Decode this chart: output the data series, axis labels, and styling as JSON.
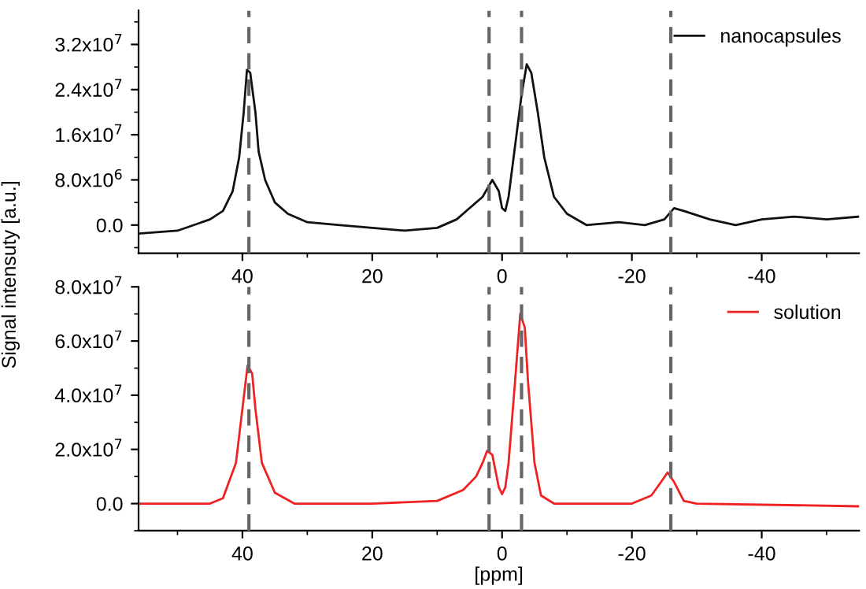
{
  "chart_data": [
    {
      "type": "line",
      "xlim": [
        56,
        -55
      ],
      "xticks": [
        40,
        20,
        0,
        -20,
        -40
      ],
      "ylim": [
        -5000000,
        38000000
      ],
      "yticks": [
        {
          "value": 0,
          "label": "0.0"
        },
        {
          "value": 8000000,
          "label": "8.0x10$^{6}$"
        },
        {
          "value": 16000000,
          "label": "1.6x10$^{7}$"
        },
        {
          "value": 24000000,
          "label": "2.4x10$^{7}$"
        },
        {
          "value": 32000000,
          "label": "3.2x10$^{7}$"
        }
      ],
      "legend": "top right",
      "grid": false,
      "series": [
        {
          "name": "nanocapsules",
          "color": "#111111",
          "x": [
            56,
            50,
            45,
            43,
            41.5,
            40.5,
            39.8,
            39.3,
            38.8,
            38,
            37.5,
            36.5,
            35,
            33,
            30,
            25,
            20,
            15,
            10,
            7,
            5,
            3,
            2,
            1.5,
            0.5,
            0,
            -0.5,
            -1,
            -2,
            -3,
            -3.8,
            -4.5,
            -5.5,
            -6.5,
            -8,
            -10,
            -13,
            -18,
            -22,
            -25,
            -26.5,
            -28,
            -32,
            -36,
            -40,
            -45,
            -50,
            -55
          ],
          "values": [
            -1500000,
            -1000000,
            1000000,
            2500000,
            6000000,
            12000000,
            20000000,
            27500000,
            27000000,
            20000000,
            13000000,
            8000000,
            4000000,
            2000000,
            500000,
            0,
            -500000,
            -1000000,
            -500000,
            1000000,
            3000000,
            5000000,
            7000000,
            8000000,
            6000000,
            3000000,
            2500000,
            5000000,
            14000000,
            23000000,
            28500000,
            27000000,
            20000000,
            12000000,
            5000000,
            2000000,
            0,
            500000,
            0,
            1000000,
            3000000,
            2500000,
            1000000,
            0,
            1000000,
            1500000,
            1000000,
            1500000
          ]
        }
      ],
      "ref_lines": [
        {
          "axis": "x",
          "value": 39,
          "color": "#666666",
          "line_style": "dashed"
        },
        {
          "axis": "x",
          "value": 2,
          "color": "#666666",
          "line_style": "dashed"
        },
        {
          "axis": "x",
          "value": -3,
          "color": "#666666",
          "line_style": "dashed"
        },
        {
          "axis": "x",
          "value": -26,
          "color": "#666666",
          "line_style": "dashed"
        }
      ]
    },
    {
      "type": "line",
      "xlim": [
        56,
        -55
      ],
      "xticks": [
        40,
        20,
        0,
        -20,
        -40
      ],
      "ylim": [
        -10000000,
        80000000
      ],
      "yticks": [
        {
          "value": 0,
          "label": "0.0"
        },
        {
          "value": 20000000,
          "label": "2.0x10$^{7}$"
        },
        {
          "value": 40000000,
          "label": "4.0x10$^{7}$"
        },
        {
          "value": 60000000,
          "label": "6.0x10$^{7}$"
        },
        {
          "value": 80000000,
          "label": "8.0x10$^{7}$"
        }
      ],
      "xlabel": "[ppm]",
      "ylabel": "Signal intensuty [a.u.]",
      "legend": "top right",
      "grid": false,
      "series": [
        {
          "name": "solution",
          "color": "#ee2222",
          "x": [
            56,
            45,
            43,
            41,
            40,
            39.2,
            38.5,
            38,
            37,
            35,
            32,
            20,
            10,
            6,
            4,
            3,
            2.3,
            1.5,
            1,
            0.5,
            0,
            -0.5,
            -1,
            -2,
            -2.8,
            -3.5,
            -4,
            -5,
            -6,
            -8,
            -20,
            -23,
            -24.5,
            -25.5,
            -26.5,
            -28,
            -30,
            -55
          ],
          "values": [
            0,
            0,
            2000000,
            15000000,
            35000000,
            51000000,
            48000000,
            35000000,
            15000000,
            4000000,
            0,
            0,
            1000000,
            5000000,
            10000000,
            15000000,
            19500000,
            18000000,
            12000000,
            6000000,
            3500000,
            6000000,
            15000000,
            45000000,
            70000000,
            65000000,
            45000000,
            15000000,
            3000000,
            0,
            0,
            3000000,
            8000000,
            11500000,
            8000000,
            1000000,
            0,
            -1000000
          ]
        }
      ],
      "ref_lines": [
        {
          "axis": "x",
          "value": 39,
          "color": "#666666",
          "line_style": "dashed"
        },
        {
          "axis": "x",
          "value": 2,
          "color": "#666666",
          "line_style": "dashed"
        },
        {
          "axis": "x",
          "value": -3,
          "color": "#666666",
          "line_style": "dashed"
        },
        {
          "axis": "x",
          "value": -26,
          "color": "#666666",
          "line_style": "dashed"
        }
      ]
    }
  ]
}
